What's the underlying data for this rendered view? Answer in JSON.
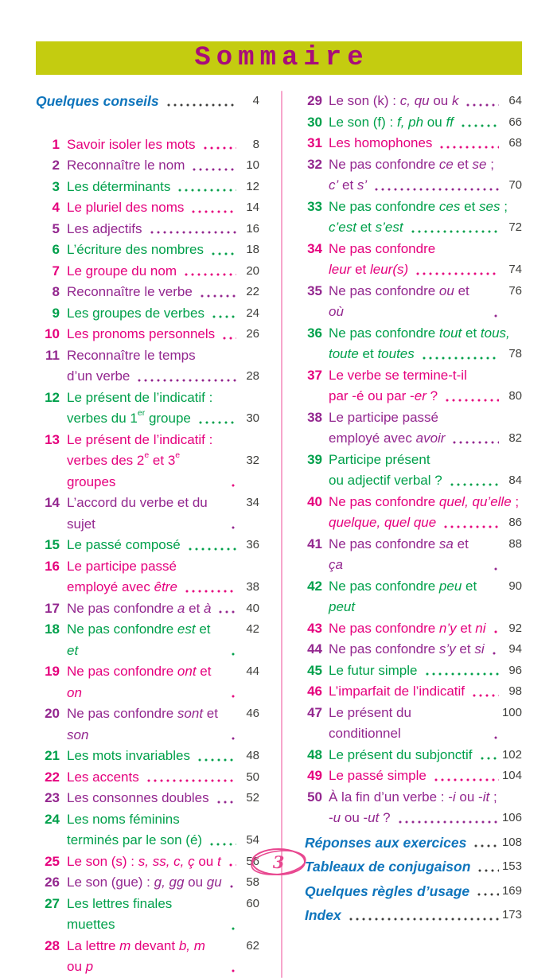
{
  "header": {
    "title": "Sommaire"
  },
  "colors": {
    "header_bg": "#c4cc10",
    "header_text": "#a80c7a",
    "pink": "#e5007d",
    "purple": "#93278f",
    "green": "#00a04b",
    "blue": "#0f75bc",
    "gray": "#3f3f3c",
    "divider": "#f7a6cb",
    "oval": "#e8468f"
  },
  "left": [
    {
      "section": true,
      "c": "blue",
      "lines": [
        "Quelques conseils"
      ],
      "page": "4"
    },
    {
      "n": "1",
      "c": "pink",
      "lines": [
        "Savoir isoler les mots"
      ],
      "page": "8"
    },
    {
      "n": "2",
      "c": "purple",
      "lines": [
        "Reconnaître le nom"
      ],
      "page": "10"
    },
    {
      "n": "3",
      "c": "green",
      "lines": [
        "Les déterminants"
      ],
      "page": "12"
    },
    {
      "n": "4",
      "c": "pink",
      "lines": [
        "Le pluriel des noms"
      ],
      "page": "14"
    },
    {
      "n": "5",
      "c": "purple",
      "lines": [
        "Les adjectifs"
      ],
      "page": "16"
    },
    {
      "n": "6",
      "c": "green",
      "lines": [
        "L’écriture des nombres"
      ],
      "page": "18"
    },
    {
      "n": "7",
      "c": "pink",
      "lines": [
        "Le groupe du nom"
      ],
      "page": "20"
    },
    {
      "n": "8",
      "c": "purple",
      "lines": [
        "Reconnaître le verbe"
      ],
      "page": "22"
    },
    {
      "n": "9",
      "c": "green",
      "lines": [
        "Les groupes de verbes"
      ],
      "page": "24"
    },
    {
      "n": "10",
      "c": "pink",
      "lines": [
        "Les pronoms personnels"
      ],
      "page": "26"
    },
    {
      "n": "11",
      "c": "purple",
      "lines": [
        "Reconnaître le temps",
        "d’un verbe"
      ],
      "page": "28"
    },
    {
      "n": "12",
      "c": "green",
      "lines": [
        "Le présent de l’indicatif :",
        "verbes du 1^er^ groupe"
      ],
      "page": "30"
    },
    {
      "n": "13",
      "c": "pink",
      "lines": [
        "Le présent de l’indicatif :",
        "verbes des 2^e^ et 3^e^ groupes"
      ],
      "page": "32"
    },
    {
      "n": "14",
      "c": "purple",
      "lines": [
        "L’accord du verbe et du sujet"
      ],
      "page": "34"
    },
    {
      "n": "15",
      "c": "green",
      "lines": [
        "Le passé composé"
      ],
      "page": "36"
    },
    {
      "n": "16",
      "c": "pink",
      "lines": [
        "Le participe passé",
        "employé avec *être*"
      ],
      "page": "38"
    },
    {
      "n": "17",
      "c": "purple",
      "lines": [
        "Ne pas confondre *a* et *à*"
      ],
      "page": "40"
    },
    {
      "n": "18",
      "c": "green",
      "lines": [
        "Ne pas confondre *est* et *et*"
      ],
      "page": "42"
    },
    {
      "n": "19",
      "c": "pink",
      "lines": [
        "Ne pas confondre *ont* et *on*"
      ],
      "page": "44"
    },
    {
      "n": "20",
      "c": "purple",
      "lines": [
        "Ne pas confondre *sont* et *son*"
      ],
      "page": "46"
    },
    {
      "n": "21",
      "c": "green",
      "lines": [
        "Les mots invariables"
      ],
      "page": "48"
    },
    {
      "n": "22",
      "c": "pink",
      "lines": [
        "Les accents"
      ],
      "page": "50"
    },
    {
      "n": "23",
      "c": "purple",
      "lines": [
        "Les consonnes doubles"
      ],
      "page": "52"
    },
    {
      "n": "24",
      "c": "green",
      "lines": [
        "Les noms féminins",
        "terminés par le son (é)"
      ],
      "page": "54"
    },
    {
      "n": "25",
      "c": "pink",
      "lines": [
        "Le son (s) : *s, ss, c, ç* ou *t*"
      ],
      "page": "56"
    },
    {
      "n": "26",
      "c": "purple",
      "lines": [
        "Le son (gue) : *g, gg* ou *gu*"
      ],
      "page": "58"
    },
    {
      "n": "27",
      "c": "green",
      "lines": [
        "Les lettres finales muettes"
      ],
      "page": "60"
    },
    {
      "n": "28",
      "c": "pink",
      "lines": [
        "La lettre *m* devant *b, m* ou *p*"
      ],
      "page": "62"
    }
  ],
  "right": [
    {
      "n": "29",
      "c": "purple",
      "lines": [
        "Le son (k) : *c, qu* ou *k*"
      ],
      "page": "64"
    },
    {
      "n": "30",
      "c": "green",
      "lines": [
        "Le son (f) : *f, ph* ou *ff*"
      ],
      "page": "66"
    },
    {
      "n": "31",
      "c": "pink",
      "lines": [
        "Les homophones"
      ],
      "page": "68"
    },
    {
      "n": "32",
      "c": "purple",
      "lines": [
        "Ne pas confondre *ce* et *se* ;",
        "*c’* et *s’*"
      ],
      "page": "70"
    },
    {
      "n": "33",
      "c": "green",
      "lines": [
        "Ne pas confondre *ces* et *ses* ;",
        "*c’est* et *s’est*"
      ],
      "page": "72"
    },
    {
      "n": "34",
      "c": "pink",
      "lines": [
        "Ne pas confondre",
        "*leur* et *leur(s)*"
      ],
      "page": "74"
    },
    {
      "n": "35",
      "c": "purple",
      "lines": [
        "Ne pas confondre *ou* et *où*"
      ],
      "page": "76"
    },
    {
      "n": "36",
      "c": "green",
      "lines": [
        "Ne pas confondre *tout* et *tous,*",
        "*toute* et *toutes*"
      ],
      "page": "78"
    },
    {
      "n": "37",
      "c": "pink",
      "lines": [
        "Le verbe se termine-t-il",
        "par -é ou par -*er* ?"
      ],
      "page": "80"
    },
    {
      "n": "38",
      "c": "purple",
      "lines": [
        "Le participe passé",
        "employé avec *avoir*"
      ],
      "page": "82"
    },
    {
      "n": "39",
      "c": "green",
      "lines": [
        "Participe présent",
        "ou adjectif verbal ?"
      ],
      "page": "84"
    },
    {
      "n": "40",
      "c": "pink",
      "lines": [
        "Ne pas confondre *quel, qu’elle* ;",
        "*quelque, quel que*"
      ],
      "page": "86"
    },
    {
      "n": "41",
      "c": "purple",
      "lines": [
        "Ne pas confondre *sa* et *ça*"
      ],
      "page": "88"
    },
    {
      "n": "42",
      "c": "green",
      "lines": [
        "Ne pas confondre *peu* et *peut*"
      ],
      "page": "90",
      "leader": false
    },
    {
      "n": "43",
      "c": "pink",
      "lines": [
        "Ne pas confondre *n’y* et *ni*"
      ],
      "page": "92"
    },
    {
      "n": "44",
      "c": "purple",
      "lines": [
        "Ne pas confondre *s’y* et *si*"
      ],
      "page": "94"
    },
    {
      "n": "45",
      "c": "green",
      "lines": [
        "Le futur simple"
      ],
      "page": "96"
    },
    {
      "n": "46",
      "c": "pink",
      "lines": [
        "L’imparfait de l’indicatif"
      ],
      "page": "98"
    },
    {
      "n": "47",
      "c": "purple",
      "lines": [
        "Le présent du conditionnel"
      ],
      "page": "100"
    },
    {
      "n": "48",
      "c": "green",
      "lines": [
        "Le présent du subjonctif"
      ],
      "page": "102"
    },
    {
      "n": "49",
      "c": "pink",
      "lines": [
        "Le passé simple"
      ],
      "page": "104"
    },
    {
      "n": "50",
      "c": "purple",
      "lines": [
        "À la fin d’un verbe : -*i* ou -*it* ;",
        "-*u* ou -*ut* ?"
      ],
      "page": "106"
    },
    {
      "section": true,
      "c": "blue",
      "lines": [
        "Réponses aux exercices"
      ],
      "page": "108"
    },
    {
      "section": true,
      "c": "blue",
      "lines": [
        "Tableaux de conjugaison"
      ],
      "page": "153"
    },
    {
      "section": true,
      "c": "blue",
      "lines": [
        "Quelques règles d’usage"
      ],
      "page": "169"
    },
    {
      "section": true,
      "c": "blue",
      "lines": [
        "Index"
      ],
      "page": "173"
    }
  ],
  "footer": {
    "page_number": "3"
  }
}
